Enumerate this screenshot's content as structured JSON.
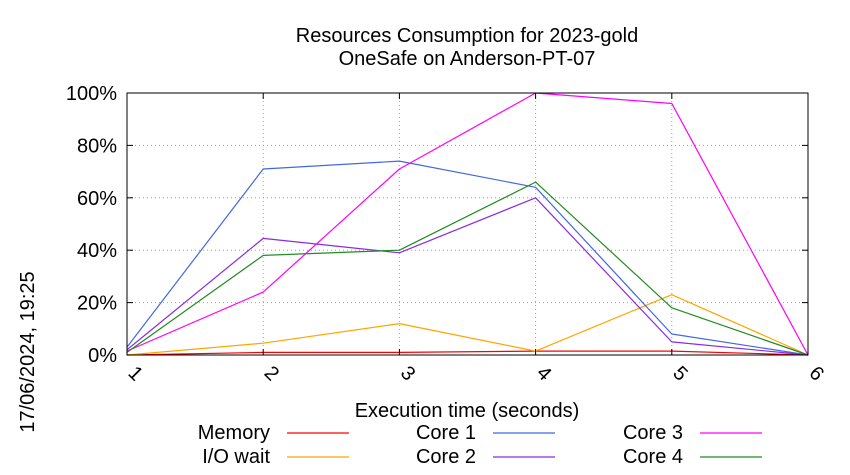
{
  "chart_data": {
    "type": "line",
    "title": [
      "Resources Consumption for 2023-gold",
      "OneSafe on Anderson-PT-07"
    ],
    "xlabel": "Execution time (seconds)",
    "ylabel": "",
    "x": [
      1,
      2,
      3,
      4,
      5,
      6
    ],
    "x_tick_labels": [
      "1",
      "2",
      "3",
      "4",
      "5",
      "6"
    ],
    "xlim": [
      1,
      6
    ],
    "ylim": [
      0,
      100
    ],
    "y_ticks": [
      0,
      20,
      40,
      60,
      80,
      100
    ],
    "y_tick_labels": [
      "0%",
      "20%",
      "40%",
      "60%",
      "80%",
      "100%"
    ],
    "grid": true,
    "legend_position": "bottom",
    "timestamp": "17/06/2024, 19:25",
    "series": [
      {
        "name": "Memory",
        "color": "#ff0000",
        "values": [
          0,
          1,
          1,
          1.5,
          1.5,
          0
        ]
      },
      {
        "name": "I/O wait",
        "color": "#ffa500",
        "values": [
          0,
          4.5,
          12,
          1.5,
          23,
          0
        ]
      },
      {
        "name": "Core 1",
        "color": "#4169e1",
        "values": [
          3,
          71,
          74,
          64,
          8,
          0
        ]
      },
      {
        "name": "Core 2",
        "color": "#8a2be2",
        "values": [
          2,
          44.5,
          39,
          60,
          5,
          0
        ]
      },
      {
        "name": "Core 3",
        "color": "#ff00ff",
        "values": [
          1.5,
          24,
          71,
          100,
          96,
          0
        ]
      },
      {
        "name": "Core 4",
        "color": "#228b22",
        "values": [
          1,
          38,
          40,
          66,
          18,
          0
        ]
      }
    ]
  }
}
